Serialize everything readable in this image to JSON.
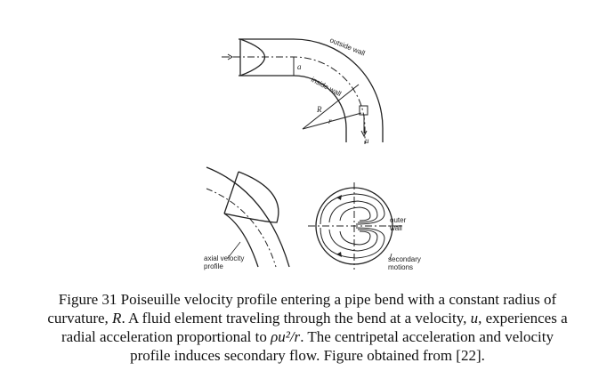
{
  "figure_labels": {
    "outside_wall": "outside wall",
    "inside_wall": "inside wall",
    "a": "a",
    "R": "R",
    "r": "r",
    "u": "u",
    "outer_wall": "outer wall",
    "axial_velocity_profile": "axial velocity profile",
    "secondary_motions": "secondary motions"
  },
  "caption": {
    "line1": "Figure 31 Poiseuille velocity profile entering a pipe bend with a constant radius of",
    "line2_a": "curvature, ",
    "line2_R": "R",
    "line2_b": ". A fluid element traveling through the bend at a velocity, ",
    "line2_u": "u",
    "line2_c": ", experiences a",
    "line3_a": "radial acceleration proportional to ",
    "line3_expr": "ρu²/r",
    "line3_b": ". The centripetal acceleration and velocity",
    "line4": "profile induces secondary flow. Figure obtained from [22]."
  }
}
